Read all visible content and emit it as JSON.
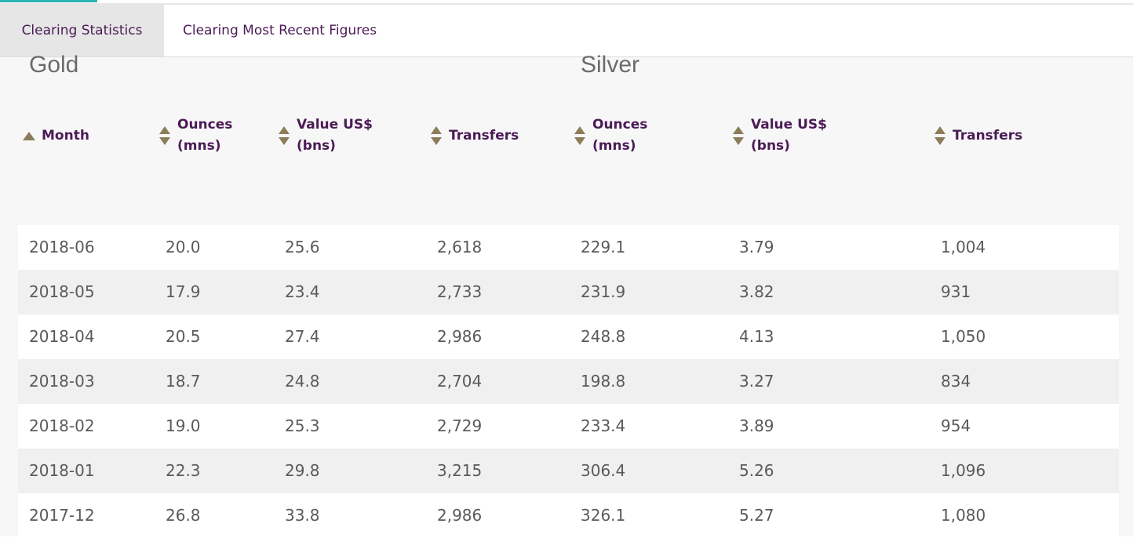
{
  "tabs": [
    {
      "label": "Clearing Statistics",
      "active": true
    },
    {
      "label": "Clearing Most Recent Figures",
      "active": false
    }
  ],
  "groups": {
    "gold": "Gold",
    "silver": "Silver"
  },
  "columns": [
    {
      "line1": "Month",
      "line2": "",
      "sort": "ascending"
    },
    {
      "line1": "Ounces",
      "line2": "(mns)",
      "sort": "none"
    },
    {
      "line1": "Value US$",
      "line2": "(bns)",
      "sort": "none"
    },
    {
      "line1": "Transfers",
      "line2": "",
      "sort": "none"
    },
    {
      "line1": "Ounces",
      "line2": "(mns)",
      "sort": "none"
    },
    {
      "line1": "Value US$",
      "line2": "(bns)",
      "sort": "none"
    },
    {
      "line1": "Transfers",
      "line2": "",
      "sort": "none"
    }
  ],
  "rows": [
    [
      "2018-06",
      "20.0",
      "25.6",
      "2,618",
      "229.1",
      "3.79",
      "1,004"
    ],
    [
      "2018-05",
      "17.9",
      "23.4",
      "2,733",
      "231.9",
      "3.82",
      "931"
    ],
    [
      "2018-04",
      "20.5",
      "27.4",
      "2,986",
      "248.8",
      "4.13",
      "1,050"
    ],
    [
      "2018-03",
      "18.7",
      "24.8",
      "2,704",
      "198.8",
      "3.27",
      "834"
    ],
    [
      "2018-02",
      "19.0",
      "25.3",
      "2,729",
      "233.4",
      "3.89",
      "954"
    ],
    [
      "2018-01",
      "22.3",
      "29.8",
      "3,215",
      "306.4",
      "5.26",
      "1,096"
    ],
    [
      "2017-12",
      "26.8",
      "33.8",
      "2,986",
      "326.1",
      "5.27",
      "1,080"
    ]
  ],
  "colors": {
    "accent": "#2ab3b3",
    "header_text": "#4b1b55",
    "sort_icon": "#8a7d5a",
    "cell_text": "#5a5a5a"
  }
}
